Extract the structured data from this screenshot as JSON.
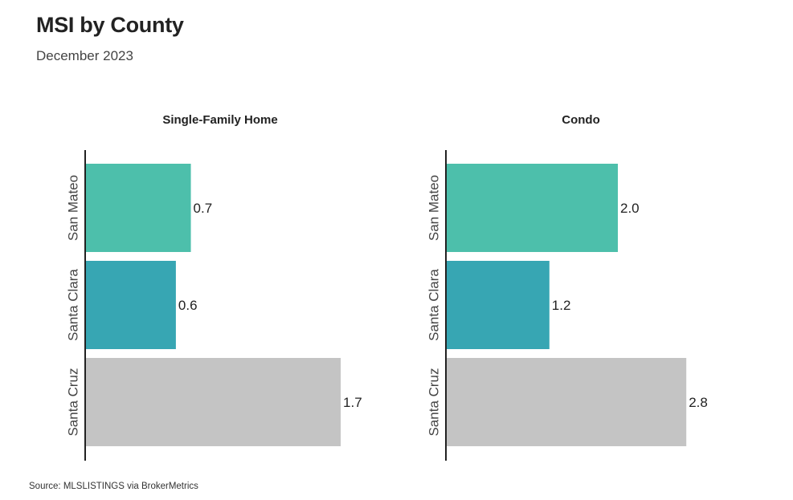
{
  "header": {
    "title": "MSI by County",
    "subtitle": "December 2023"
  },
  "footer": {
    "source": "Source:  MLSLISTINGS via BrokerMetrics"
  },
  "colors": {
    "san_mateo": "#4dbfab",
    "santa_clara": "#37a6b3",
    "santa_cruz": "#c4c4c4",
    "axis": "#222222"
  },
  "chart_data": [
    {
      "type": "bar",
      "orientation": "horizontal",
      "title": "Single-Family Home",
      "categories": [
        "San Mateo",
        "Santa Clara",
        "Santa Cruz"
      ],
      "values": [
        0.7,
        0.6,
        1.7
      ],
      "value_labels": [
        "0.7",
        "0.6",
        "1.7"
      ],
      "xlim": [
        0,
        1.8
      ],
      "grid": false
    },
    {
      "type": "bar",
      "orientation": "horizontal",
      "title": "Condo",
      "categories": [
        "San Mateo",
        "Santa Clara",
        "Santa Cruz"
      ],
      "values": [
        2.0,
        1.2,
        2.8
      ],
      "value_labels": [
        "2.0",
        "1.2",
        "2.8"
      ],
      "xlim": [
        0,
        3.0
      ],
      "grid": false
    }
  ]
}
